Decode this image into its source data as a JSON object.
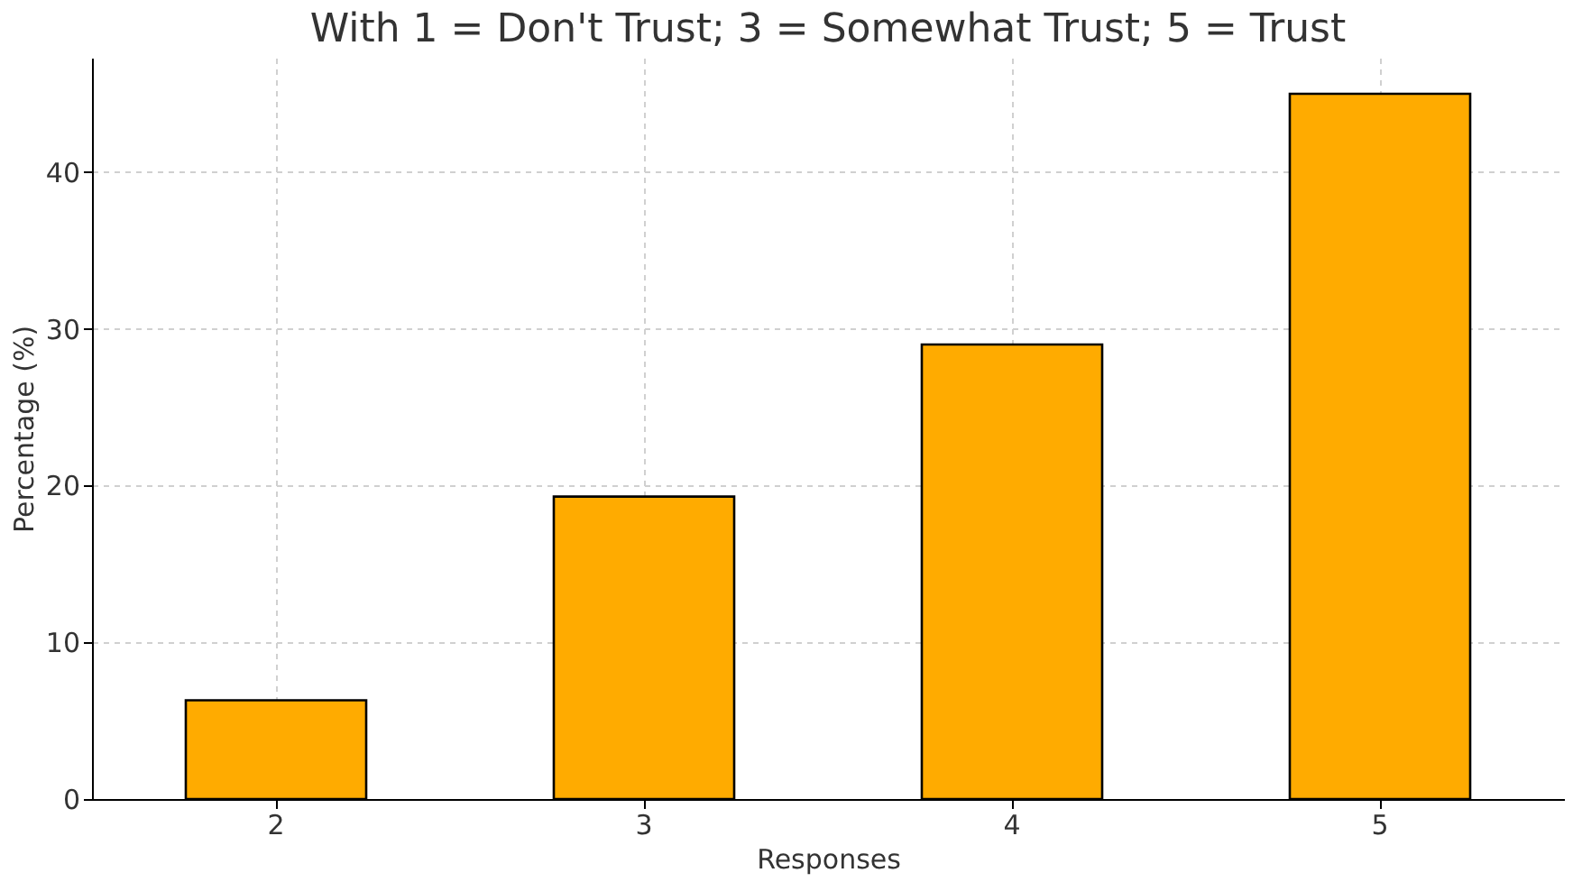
{
  "chart_data": {
    "type": "bar",
    "title": "With 1 = Don't Trust; 3 = Somewhat Trust; 5 = Trust",
    "xlabel": "Responses",
    "ylabel": "Percentage (%)",
    "categories": [
      "2",
      "3",
      "4",
      "5"
    ],
    "values": [
      6.3,
      19.3,
      29.0,
      45.0
    ],
    "color": "#ffab00",
    "ylim": [
      0,
      47.3
    ],
    "yticks": [
      0,
      10,
      20,
      30,
      40
    ],
    "grid": true
  }
}
